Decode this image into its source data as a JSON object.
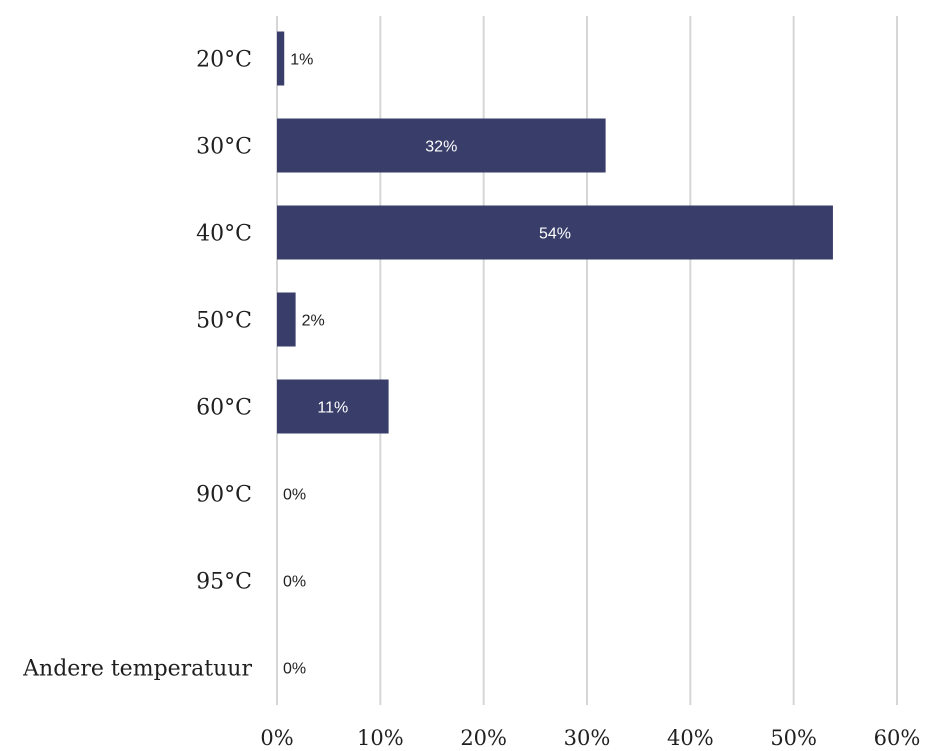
{
  "chart_data": {
    "type": "bar",
    "orientation": "horizontal",
    "categories": [
      "20°C",
      "30°C",
      "40°C",
      "50°C",
      "60°C",
      "90°C",
      "95°C",
      "Andere temperatuur"
    ],
    "values": [
      0.7,
      31.8,
      53.8,
      1.8,
      10.8,
      0,
      0,
      0
    ],
    "data_labels": [
      "1%",
      "32%",
      "54%",
      "2%",
      "11%",
      "0%",
      "0%",
      "0%"
    ],
    "xlim": [
      0,
      60
    ],
    "x_ticks": [
      0,
      10,
      20,
      30,
      40,
      50,
      60
    ],
    "x_tick_labels": [
      "0%",
      "10%",
      "20%",
      "30%",
      "40%",
      "50%",
      "60%"
    ],
    "grid": true,
    "colors": {
      "bar": "#383d69",
      "grid": "#d6d6d6",
      "label_inside": "#ffffff",
      "label_outside": "#1f1f1f"
    }
  }
}
